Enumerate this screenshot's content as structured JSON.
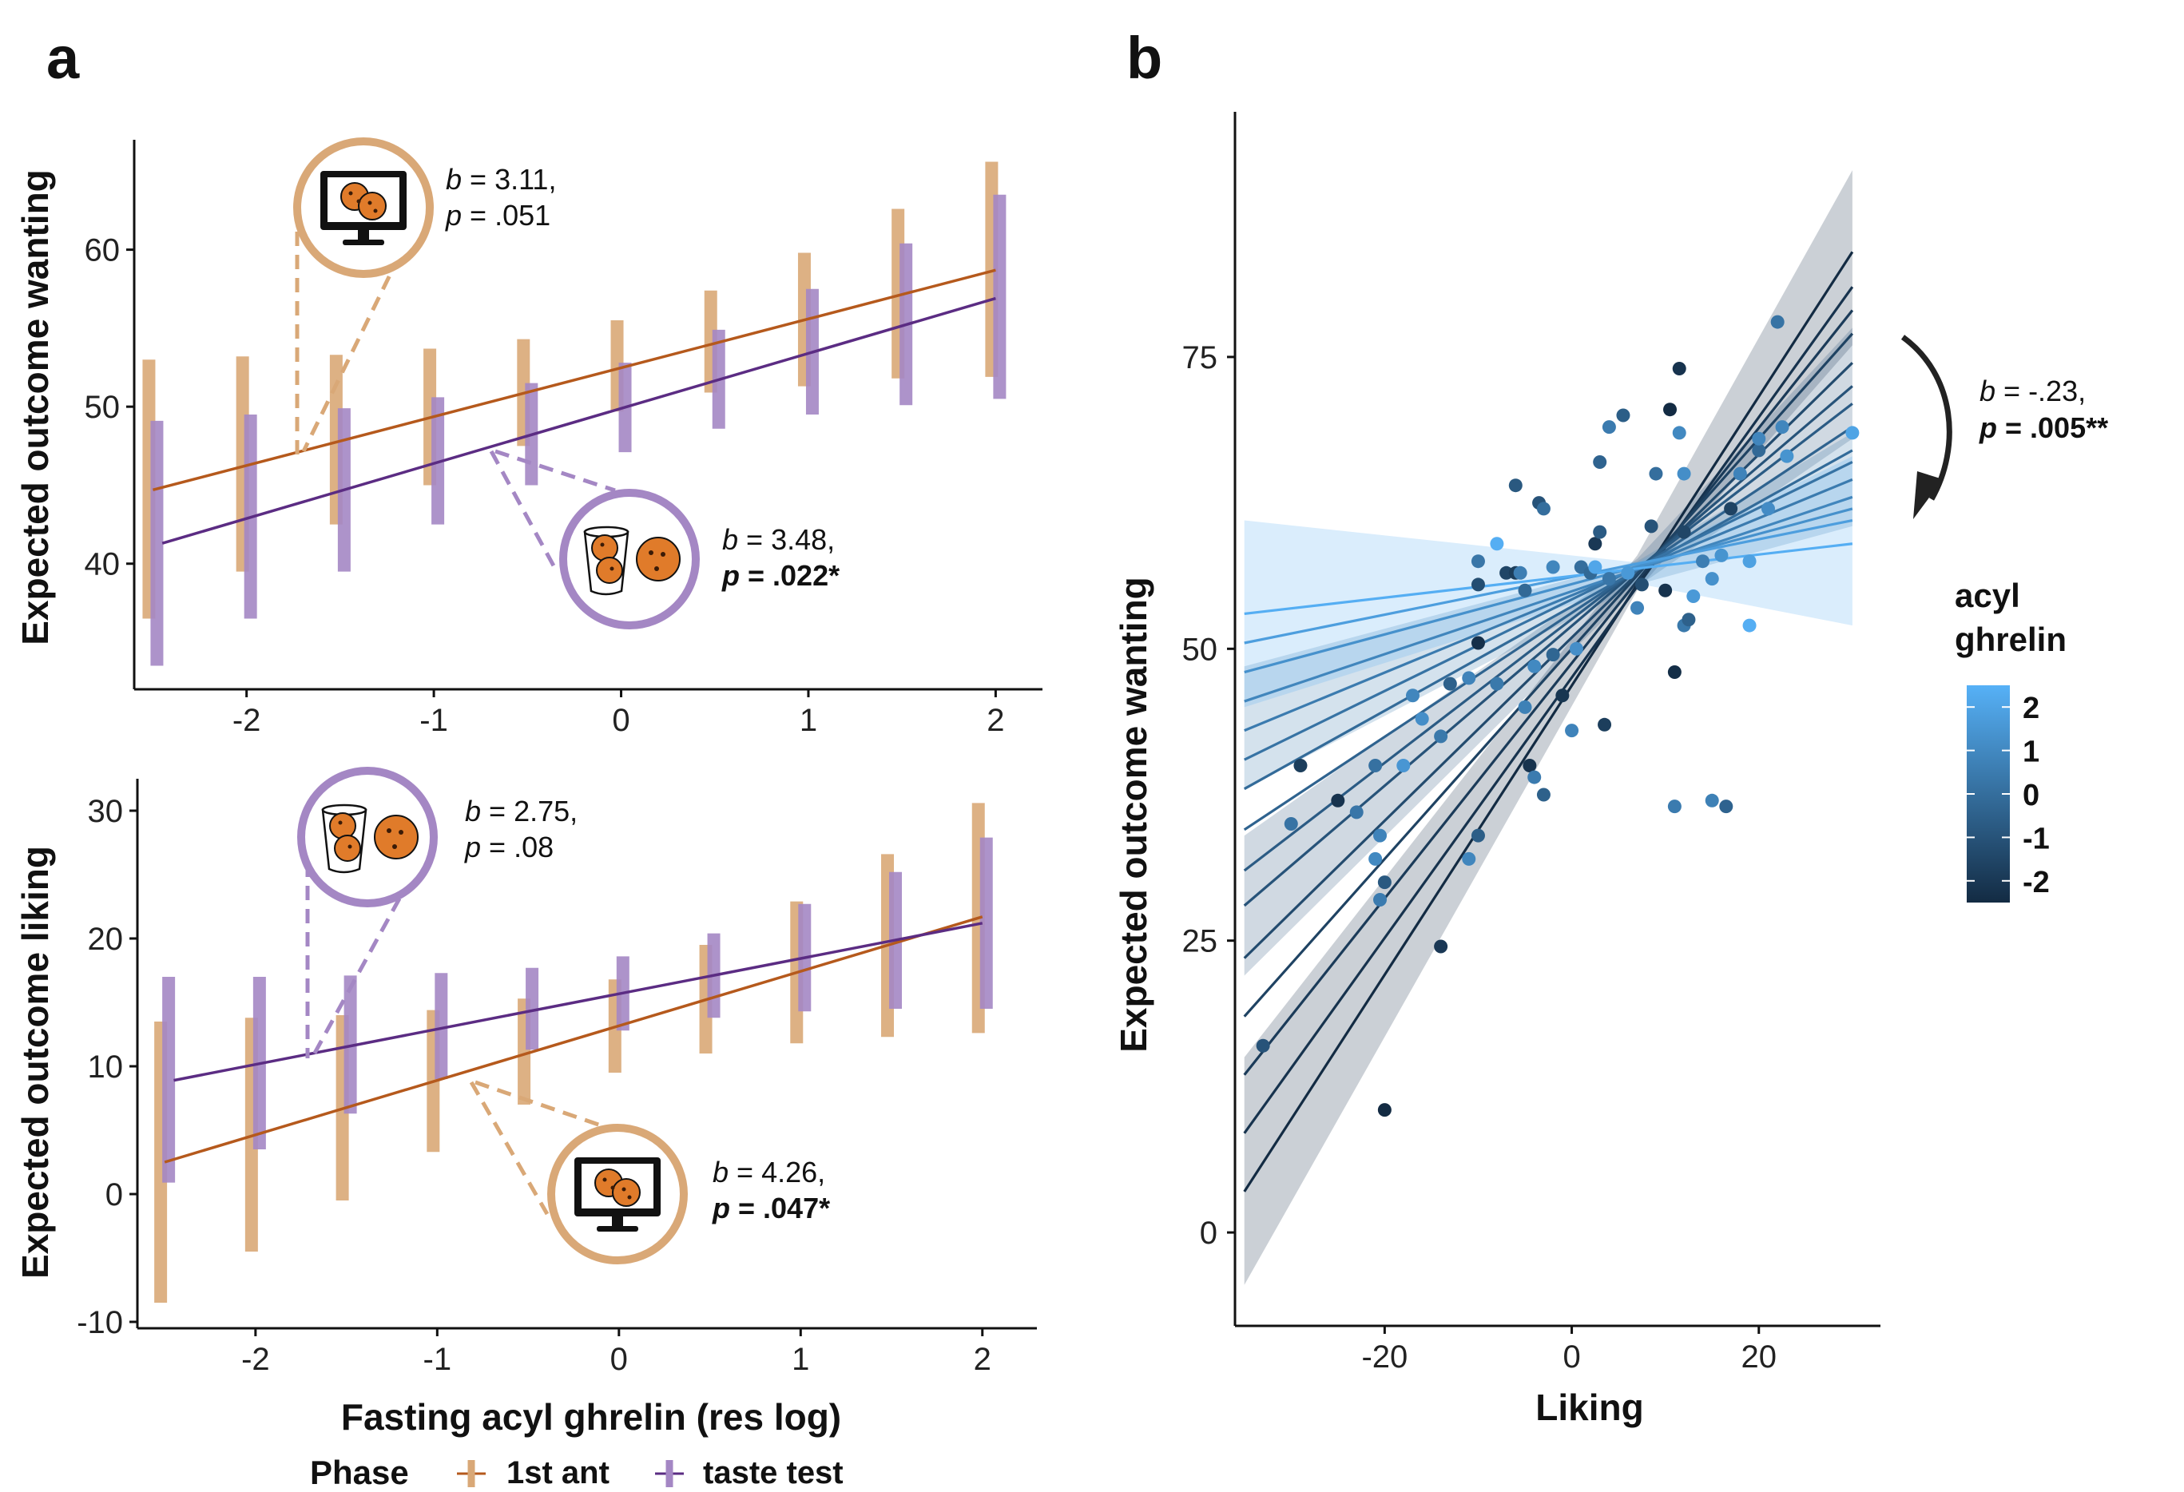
{
  "colors": {
    "first_ant": "#B5591C",
    "first_ant_bar": "#D9A877",
    "taste_test": "#5B2C83",
    "taste_test_bar": "#A487C4",
    "ghrelin_low": "#132B43",
    "ghrelin_high": "#56B1F7"
  },
  "chart_data": [
    {
      "panel": "a",
      "type": "line",
      "xlabel": "",
      "ylabel": "Expected outcome wanting",
      "xlim": [
        -2.6,
        2.25
      ],
      "ylim": [
        32,
        67
      ],
      "xticks": [
        -2,
        -1,
        0,
        1,
        2
      ],
      "xtick_labels": [
        "-2",
        "-1",
        "0",
        "1",
        "2"
      ],
      "yticks": [
        40,
        50,
        60
      ],
      "ytick_labels": [
        "40",
        "50",
        "60"
      ],
      "x": [
        -2.5,
        -2,
        -1.5,
        -1,
        -0.5,
        0,
        0.5,
        1,
        1.5,
        2
      ],
      "series": [
        {
          "key": "first_ant",
          "line": {
            "x0": -2.5,
            "y0": 44.7,
            "x1": 2.0,
            "y1": 58.7
          },
          "lower": [
            36.5,
            39.5,
            42.5,
            45.0,
            47.5,
            49.7,
            50.9,
            51.3,
            51.8,
            51.9
          ],
          "upper": [
            53.0,
            53.2,
            53.3,
            53.7,
            54.3,
            55.5,
            57.4,
            59.8,
            62.6,
            65.6
          ]
        },
        {
          "key": "taste_test",
          "line": {
            "x0": -2.45,
            "y0": 41.3,
            "x1": 2.0,
            "y1": 56.9
          },
          "lower": [
            33.5,
            36.5,
            39.5,
            42.5,
            45.0,
            47.1,
            48.6,
            49.5,
            50.1,
            50.5
          ],
          "upper": [
            49.1,
            49.5,
            49.9,
            50.6,
            51.5,
            52.8,
            54.9,
            57.5,
            60.4,
            63.5
          ]
        }
      ],
      "annotations": [
        {
          "icon": "monitor-cookies-icon",
          "ring": "first_ant",
          "b": "3.11,",
          "p": ".051",
          "sig": false
        },
        {
          "icon": "cup-cookies-icon",
          "ring": "taste_test",
          "b": "3.48,",
          "p": ".022*",
          "sig": true
        }
      ]
    },
    {
      "panel": "a",
      "type": "line",
      "xlabel": "Fasting acyl ghrelin (res log)",
      "ylabel": "Expected outcome liking",
      "xlim": [
        -2.65,
        2.3
      ],
      "ylim": [
        -10.5,
        32.5
      ],
      "xticks": [
        -2,
        -1,
        0,
        1,
        2
      ],
      "xtick_labels": [
        "-2",
        "-1",
        "0",
        "1",
        "2"
      ],
      "yticks": [
        -10,
        0,
        10,
        20,
        30
      ],
      "ytick_labels": [
        "-10",
        "0",
        "10",
        "20",
        "30"
      ],
      "x": [
        -2.5,
        -2,
        -1.5,
        -1,
        -0.5,
        0,
        0.5,
        1,
        1.5,
        2
      ],
      "series": [
        {
          "key": "first_ant",
          "line": {
            "x0": -2.5,
            "y0": 2.5,
            "x1": 2.0,
            "y1": 21.7
          },
          "lower": [
            -8.5,
            -4.5,
            -0.5,
            3.3,
            7.0,
            9.5,
            11.0,
            11.8,
            12.3,
            12.6
          ],
          "upper": [
            13.5,
            13.8,
            14.0,
            14.4,
            15.3,
            16.8,
            19.5,
            22.9,
            26.6,
            30.6
          ]
        },
        {
          "key": "taste_test",
          "line": {
            "x0": -2.45,
            "y0": 8.9,
            "x1": 2.0,
            "y1": 21.2
          },
          "lower": [
            0.9,
            3.5,
            6.3,
            9.0,
            11.3,
            12.8,
            13.8,
            14.3,
            14.5,
            14.5
          ],
          "upper": [
            17.0,
            17.0,
            17.1,
            17.3,
            17.7,
            18.6,
            20.4,
            22.7,
            25.2,
            27.9
          ]
        }
      ],
      "annotations": [
        {
          "icon": "cup-cookies-icon",
          "ring": "taste_test",
          "b": "2.75,",
          "p": ".08",
          "sig": false
        },
        {
          "icon": "monitor-cookies-icon",
          "ring": "first_ant",
          "b": "4.26,",
          "p": ".047*",
          "sig": true
        }
      ]
    },
    {
      "panel": "b",
      "type": "scatter",
      "xlabel": "Liking",
      "ylabel": "Expected outcome wanting",
      "xlim": [
        -36,
        33
      ],
      "ylim": [
        -8,
        96
      ],
      "xticks": [
        -20,
        0,
        20
      ],
      "xtick_labels": [
        "-20",
        "0",
        "20"
      ],
      "yticks": [
        0,
        25,
        50,
        75
      ],
      "ytick_labels": [
        "0",
        "25",
        "50",
        "75"
      ],
      "fit_lines": [
        {
          "ghrelin": -2.5,
          "y0": 3.5,
          "y1": 84.0
        },
        {
          "ghrelin": -2.2,
          "y0": 8.5,
          "y1": 81.0
        },
        {
          "ghrelin": -1.9,
          "y0": 13.5,
          "y1": 79.0
        },
        {
          "ghrelin": -1.6,
          "y0": 18.5,
          "y1": 77.0
        },
        {
          "ghrelin": -1.3,
          "y0": 23.5,
          "y1": 74.5
        },
        {
          "ghrelin": -1.0,
          "y0": 28.0,
          "y1": 72.5
        },
        {
          "ghrelin": -0.7,
          "y0": 31.0,
          "y1": 71.0
        },
        {
          "ghrelin": -0.4,
          "y0": 34.5,
          "y1": 69.0
        },
        {
          "ghrelin": -0.1,
          "y0": 38.0,
          "y1": 67.0
        },
        {
          "ghrelin": 0.2,
          "y0": 40.5,
          "y1": 66.0
        },
        {
          "ghrelin": 0.5,
          "y0": 43.0,
          "y1": 64.5
        },
        {
          "ghrelin": 0.9,
          "y0": 45.5,
          "y1": 63.0
        },
        {
          "ghrelin": 1.3,
          "y0": 48.0,
          "y1": 62.0
        },
        {
          "ghrelin": 1.8,
          "y0": 50.5,
          "y1": 61.0
        },
        {
          "ghrelin": 2.4,
          "y0": 53.0,
          "y1": 59.0
        }
      ],
      "fit_x": [
        -35,
        30
      ],
      "bands": [
        {
          "ghrelin": -2.5,
          "lower": [
            -4.5,
            76.0
          ],
          "upper": [
            15.0,
            91.0
          ],
          "pivot_x": 7,
          "pivot_lo": 55.0,
          "pivot_hi": 58.0
        },
        {
          "ghrelin": -1.0,
          "lower": [
            22.0,
            68.0
          ],
          "upper": [
            34.0,
            77.5
          ],
          "pivot_x": 7,
          "pivot_lo": 55.3,
          "pivot_hi": 57.7
        },
        {
          "ghrelin": 0.5,
          "lower": [
            38.0,
            60.5
          ],
          "upper": [
            48.5,
            68.5
          ],
          "pivot_x": 7,
          "pivot_lo": 55.5,
          "pivot_hi": 57.5
        },
        {
          "ghrelin": 2.4,
          "lower": [
            45.0,
            52.0
          ],
          "upper": [
            61.0,
            66.5
          ],
          "pivot_x": 7,
          "pivot_lo": 55.6,
          "pivot_hi": 57.4
        }
      ],
      "points": [
        [
          -33,
          16,
          -1.0
        ],
        [
          -30,
          35,
          0.2
        ],
        [
          -29,
          40,
          -1.8
        ],
        [
          -25,
          37,
          -2.2
        ],
        [
          -23,
          36,
          0.3
        ],
        [
          -21,
          32,
          1.0
        ],
        [
          -20.5,
          28.5,
          0.5
        ],
        [
          -20.5,
          34,
          0.8
        ],
        [
          -20,
          30,
          -0.8
        ],
        [
          -21,
          40,
          0.1
        ],
        [
          -20,
          10.5,
          -2.5
        ],
        [
          -18,
          40,
          1.5
        ],
        [
          -17,
          46,
          0.9
        ],
        [
          -16,
          44,
          1.2
        ],
        [
          -14,
          24.5,
          -2.0
        ],
        [
          -14,
          42.5,
          0.4
        ],
        [
          -13,
          47,
          -0.5
        ],
        [
          -11,
          47.5,
          0.8
        ],
        [
          -11,
          32,
          0.9
        ],
        [
          -10,
          34,
          -0.6
        ],
        [
          -10,
          55.5,
          -1.2
        ],
        [
          -10,
          57.5,
          0.3
        ],
        [
          -10,
          50.5,
          -2.3
        ],
        [
          -8,
          59,
          2.4
        ],
        [
          -8,
          47,
          0.4
        ],
        [
          -7,
          56.5,
          -1.5
        ],
        [
          -6,
          56.5,
          -1.8
        ],
        [
          -6,
          64,
          -0.8
        ],
        [
          -5.5,
          56.5,
          0.6
        ],
        [
          -5,
          55,
          -0.2
        ],
        [
          -5,
          45,
          0.7
        ],
        [
          -4.5,
          40,
          -2.2
        ],
        [
          -4,
          48.5,
          1.0
        ],
        [
          -4,
          39,
          0.5
        ],
        [
          -3.5,
          62.5,
          -1.0
        ],
        [
          -3,
          62,
          0.0
        ],
        [
          -3,
          37.5,
          -0.5
        ],
        [
          -2,
          57,
          0.9
        ],
        [
          -2,
          49.5,
          -0.3
        ],
        [
          -1,
          46,
          -2.1
        ],
        [
          0,
          43,
          0.8
        ],
        [
          0.5,
          50,
          1.2
        ],
        [
          1,
          57,
          0.0
        ],
        [
          2,
          56.5,
          -0.2
        ],
        [
          2.5,
          57,
          2.1
        ],
        [
          2.5,
          59,
          -2.0
        ],
        [
          3,
          60,
          -0.7
        ],
        [
          3,
          66,
          -0.4
        ],
        [
          3.5,
          43.5,
          -1.8
        ],
        [
          4,
          56,
          0.3
        ],
        [
          4,
          69,
          0.5
        ],
        [
          5.5,
          70,
          -0.6
        ],
        [
          6,
          56.5,
          1.6
        ],
        [
          7,
          53.5,
          0.8
        ],
        [
          7.5,
          55.5,
          -1.2
        ],
        [
          8.5,
          60.5,
          -1.0
        ],
        [
          9,
          65,
          0.0
        ],
        [
          10,
          55,
          -2.2
        ],
        [
          10.5,
          70.5,
          -2.5
        ],
        [
          11,
          48,
          -2.4
        ],
        [
          11,
          36.5,
          0.5
        ],
        [
          11.5,
          68.5,
          1.0
        ],
        [
          11.5,
          74,
          -2.2
        ],
        [
          12,
          52,
          0.4
        ],
        [
          12.5,
          52.5,
          -0.5
        ],
        [
          12,
          60,
          -1.5
        ],
        [
          12,
          65,
          1.2
        ],
        [
          13,
          54.5,
          1.6
        ],
        [
          14,
          57.5,
          0.6
        ],
        [
          15,
          56,
          1.3
        ],
        [
          15,
          37,
          0.7
        ],
        [
          16,
          58,
          1.4
        ],
        [
          16.5,
          36.5,
          -0.4
        ],
        [
          17,
          62,
          -1.6
        ],
        [
          18,
          65,
          0.8
        ],
        [
          19,
          57.5,
          1.9
        ],
        [
          19,
          52,
          2.4
        ],
        [
          20,
          67,
          -0.2
        ],
        [
          20,
          68,
          0.9
        ],
        [
          21,
          62,
          1.1
        ],
        [
          22,
          78,
          0.2
        ],
        [
          22.5,
          69,
          0.9
        ],
        [
          23,
          66.5,
          1.4
        ],
        [
          30,
          68.5,
          2.0
        ]
      ],
      "colorbar": {
        "title_line1": "acyl",
        "title_line2": "ghrelin",
        "range": [
          -2.5,
          2.5
        ],
        "ticks": [
          2,
          1,
          0,
          -1,
          -2
        ],
        "tick_labels": [
          "2",
          "1",
          "0",
          "-1",
          "-2"
        ]
      },
      "annotation": {
        "b": "-.23,",
        "p": ".005**"
      }
    }
  ],
  "panel_labels": {
    "a": "a",
    "b": "b"
  },
  "annotation_prefix": {
    "b": "b",
    "b_eq": " = ",
    "p": "p",
    "p_eq": " = "
  },
  "legend": {
    "title": "Phase",
    "items": [
      {
        "key": "first_ant",
        "label": "1st ant"
      },
      {
        "key": "taste_test",
        "label": "taste test"
      }
    ]
  }
}
